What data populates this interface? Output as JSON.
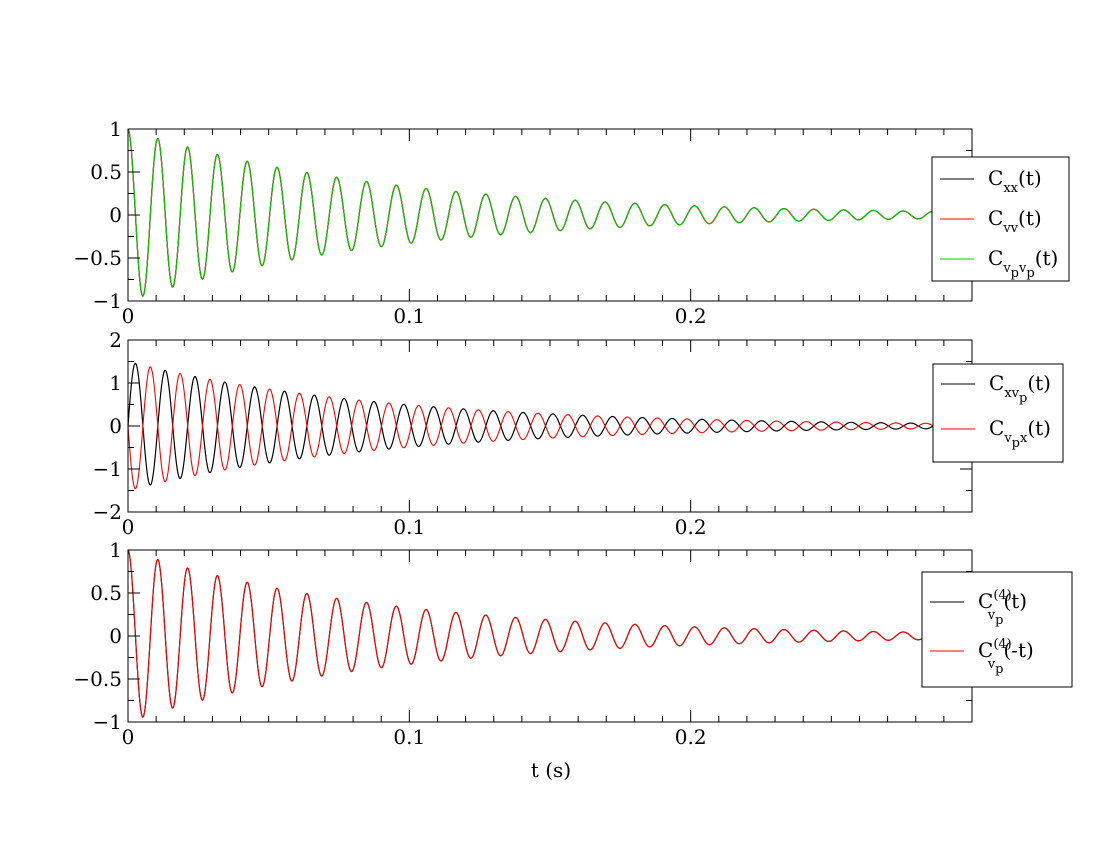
{
  "colors": {
    "black": "#000000",
    "red": "#ff0000",
    "green": "#00cc00",
    "background": "#ffffff"
  },
  "chart_data": [
    {
      "type": "line",
      "panel": "top",
      "xlabel": "",
      "ylabel": "",
      "xlim": [
        0,
        0.3
      ],
      "ylim": [
        -1,
        1
      ],
      "x_ticks": [
        0,
        0.1,
        0.2
      ],
      "x_tick_labels": [
        "0",
        "0.1",
        "0.2"
      ],
      "y_ticks": [
        -1,
        -0.5,
        0,
        0.5,
        1
      ],
      "y_tick_labels": [
        "−1",
        "−0.5",
        "0",
        "0.5",
        "1"
      ],
      "grid": false,
      "legend_position": "right",
      "series": [
        {
          "name": "Cxx(t)",
          "label_main": "C",
          "label_sub": "xx",
          "label_tail": "(t)",
          "color": "#000000",
          "amplitude": 1.0,
          "period_s": 0.0106,
          "decay_tau_s": 0.09,
          "phase": "cos"
        },
        {
          "name": "Cvv(t)",
          "label_main": "C",
          "label_sub": "vv",
          "label_tail": "(t)",
          "color": "#ff0000",
          "amplitude": 1.0,
          "period_s": 0.0106,
          "decay_tau_s": 0.09,
          "phase": "cos"
        },
        {
          "name": "Cvpvp(t)",
          "label_main": "C",
          "label_sub": "v",
          "label_subsub": "p",
          "label_sub2": "v",
          "label_subsub2": "p",
          "label_tail": "(t)",
          "color": "#00cc00",
          "amplitude": 1.0,
          "period_s": 0.0106,
          "decay_tau_s": 0.09,
          "phase": "cos"
        }
      ]
    },
    {
      "type": "line",
      "panel": "middle",
      "xlabel": "",
      "ylabel": "",
      "xlim": [
        0,
        0.3
      ],
      "ylim": [
        -2,
        2
      ],
      "x_ticks": [
        0,
        0.1,
        0.2
      ],
      "x_tick_labels": [
        "0",
        "0.1",
        "0.2"
      ],
      "y_ticks": [
        -2,
        -1,
        0,
        1,
        2
      ],
      "y_tick_labels": [
        "−2",
        "−1",
        "0",
        "1",
        "2"
      ],
      "grid": false,
      "legend_position": "right",
      "series": [
        {
          "name": "Cxvp(t)",
          "label_main": "C",
          "label_sub": "xv",
          "label_subsub": "p",
          "label_tail": "(t)",
          "color": "#000000",
          "amplitude": 1.5,
          "period_s": 0.0106,
          "decay_tau_s": 0.09,
          "phase": "sin"
        },
        {
          "name": "Cvpx(t)",
          "label_main": "C",
          "label_sub": "v",
          "label_subsub": "p",
          "label_sub2": "x",
          "label_tail": "(t)",
          "color": "#ff0000",
          "amplitude": 1.5,
          "period_s": 0.0106,
          "decay_tau_s": 0.09,
          "phase": "-sin"
        }
      ]
    },
    {
      "type": "line",
      "panel": "bottom",
      "xlabel": "t (s)",
      "ylabel": "",
      "xlim": [
        0,
        0.3
      ],
      "ylim": [
        -1,
        1
      ],
      "x_ticks": [
        0,
        0.1,
        0.2
      ],
      "x_tick_labels": [
        "0",
        "0.1",
        "0.2"
      ],
      "y_ticks": [
        -1,
        -0.5,
        0,
        0.5,
        1
      ],
      "y_tick_labels": [
        "−1",
        "−0.5",
        "0",
        "0.5",
        "1"
      ],
      "grid": false,
      "legend_position": "right",
      "series": [
        {
          "name": "C(4)vp(t)",
          "label_main": "C",
          "label_sup": "(4)",
          "label_sub": "v",
          "label_subsub": "p",
          "label_tail": "(t)",
          "color": "#000000",
          "amplitude": 1.0,
          "period_s": 0.0106,
          "decay_tau_s": 0.09,
          "phase": "cos"
        },
        {
          "name": "C(4)vp(-t)",
          "label_main": "C",
          "label_sup": "(4)",
          "label_sub": "v",
          "label_subsub": "p",
          "label_tail": "(-t)",
          "color": "#ff0000",
          "amplitude": 1.0,
          "period_s": 0.0106,
          "decay_tau_s": 0.09,
          "phase": "cos"
        }
      ]
    }
  ]
}
